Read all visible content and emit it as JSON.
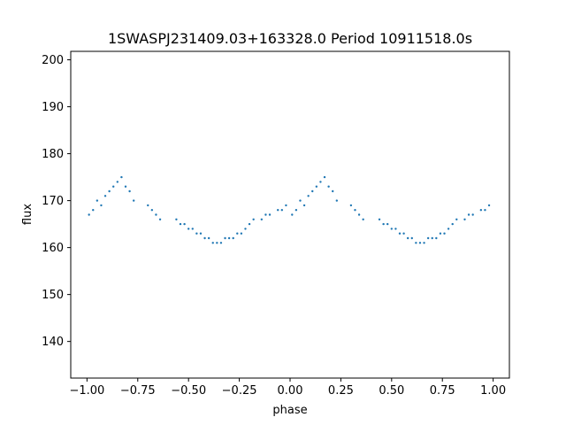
{
  "chart_data": {
    "type": "scatter",
    "title": "1SWASPJ231409.03+163328.0 Period 10911518.0s",
    "xlabel": "phase",
    "ylabel": "flux",
    "xlim": [
      -1.08,
      1.08
    ],
    "ylim": [
      132.2,
      201.8
    ],
    "xticks": [
      -1.0,
      -0.75,
      -0.5,
      -0.25,
      0.0,
      0.25,
      0.5,
      0.75,
      1.0
    ],
    "xtick_labels": [
      "−1.00",
      "−0.75",
      "−0.50",
      "−0.25",
      "0.00",
      "0.25",
      "0.50",
      "0.75",
      "1.00"
    ],
    "yticks": [
      140,
      150,
      160,
      170,
      180,
      190,
      200
    ],
    "ytick_labels": [
      "140",
      "150",
      "160",
      "170",
      "180",
      "190",
      "200"
    ],
    "point_color": "#1f77b4",
    "grid": false,
    "legend": "none",
    "series": [
      {
        "x": [
          -0.99,
          -0.97,
          -0.95,
          -0.93,
          -0.91,
          -0.89,
          -0.87,
          -0.85,
          -0.83,
          -0.81,
          -0.79,
          -0.77,
          -0.7,
          -0.68,
          -0.66,
          -0.64,
          -0.56,
          -0.54,
          -0.52,
          -0.5,
          -0.48,
          -0.46,
          -0.44,
          -0.42,
          -0.4,
          -0.38,
          -0.36,
          -0.34,
          -0.32,
          -0.3,
          -0.28,
          -0.26,
          -0.24,
          -0.22,
          -0.2,
          -0.18,
          -0.14,
          -0.12,
          -0.1,
          -0.06,
          -0.04,
          -0.02,
          0.01,
          0.03,
          0.05,
          0.07,
          0.09,
          0.11,
          0.13,
          0.15,
          0.17,
          0.19,
          0.21,
          0.23,
          0.3,
          0.32,
          0.34,
          0.36,
          0.44,
          0.46,
          0.48,
          0.5,
          0.52,
          0.54,
          0.56,
          0.58,
          0.6,
          0.62,
          0.64,
          0.66,
          0.68,
          0.7,
          0.72,
          0.74,
          0.76,
          0.78,
          0.8,
          0.82,
          0.86,
          0.88,
          0.9,
          0.94,
          0.96,
          0.98
        ],
        "y": [
          167,
          168,
          170,
          169,
          171,
          172,
          173,
          174,
          175,
          173,
          172,
          170,
          169,
          168,
          167,
          166,
          166,
          165,
          165,
          164,
          164,
          163,
          163,
          162,
          162,
          161,
          161,
          161,
          162,
          162,
          162,
          163,
          163,
          164,
          165,
          166,
          166,
          167,
          167,
          168,
          168,
          169,
          167,
          168,
          170,
          169,
          171,
          172,
          173,
          174,
          175,
          173,
          172,
          170,
          169,
          168,
          167,
          166,
          166,
          165,
          165,
          164,
          164,
          163,
          163,
          162,
          162,
          161,
          161,
          161,
          162,
          162,
          162,
          163,
          163,
          164,
          165,
          166,
          166,
          167,
          167,
          168,
          168,
          169
        ]
      }
    ]
  }
}
